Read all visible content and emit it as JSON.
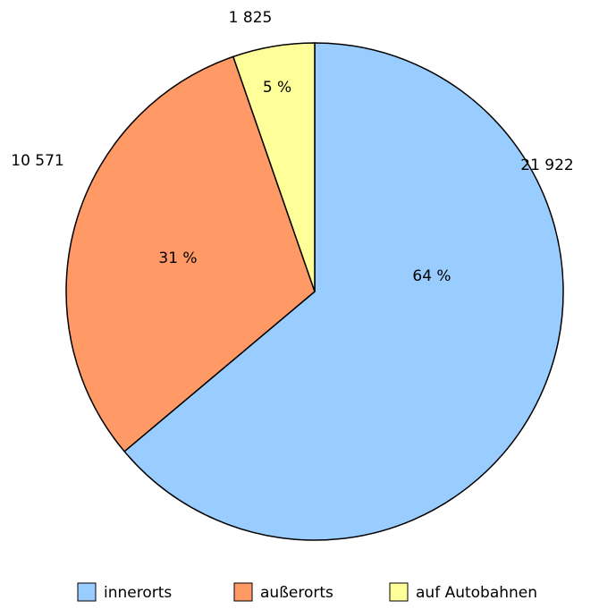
{
  "chart_data": {
    "type": "pie",
    "categories": [
      "innerorts",
      "außerorts",
      "auf Autobahnen"
    ],
    "values": [
      21922,
      10571,
      1825
    ],
    "value_labels": [
      "21 922",
      "10 571",
      "1 825"
    ],
    "percents": [
      64,
      31,
      5
    ],
    "percent_labels": [
      "64 %",
      "31 %",
      "5 %"
    ],
    "colors": [
      "#99ccff",
      "#ff9966",
      "#ffff99"
    ],
    "legend": "bottom"
  }
}
